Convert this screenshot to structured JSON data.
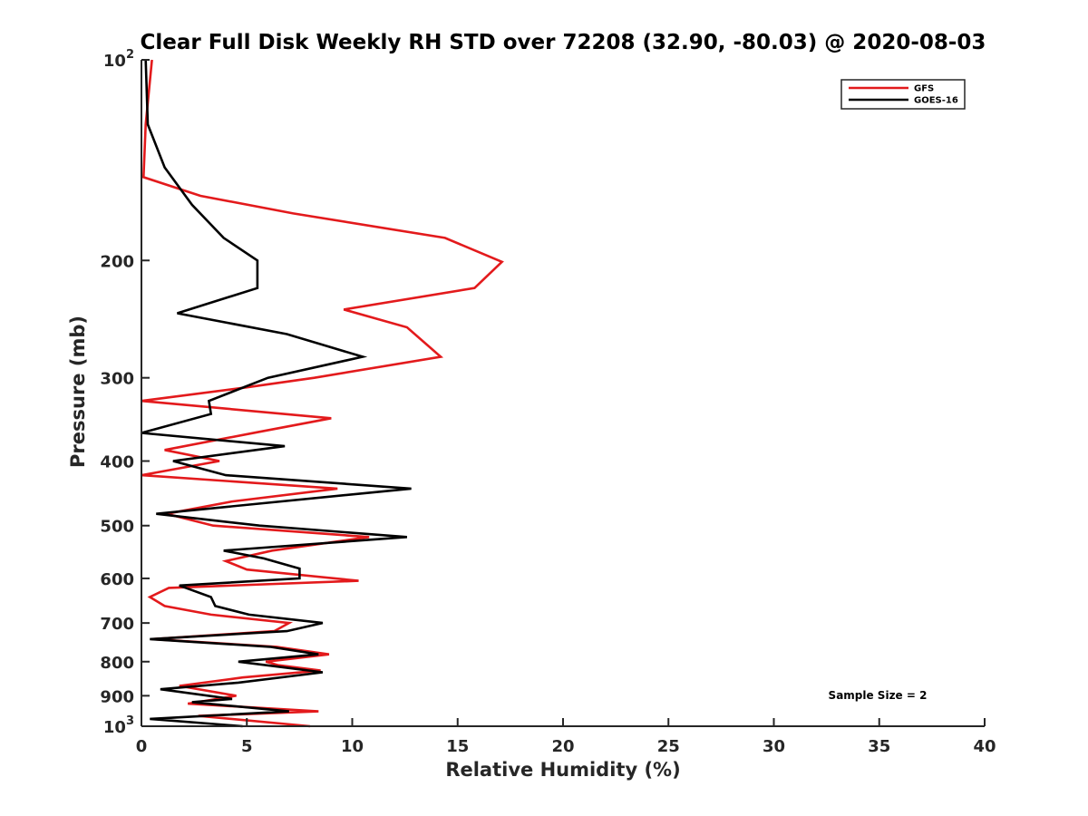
{
  "chart_data": {
    "type": "line",
    "title": "Clear Full Disk Weekly RH STD over 72208 (32.90, -80.03) @ 2020-08-03",
    "xlabel": "Relative Humidity (%)",
    "ylabel": "Pressure (mb)",
    "xlim": [
      0,
      40
    ],
    "ylim": [
      100,
      1000
    ],
    "yscale": "log",
    "y_reversed": true,
    "grid": false,
    "legend_position": "top-right",
    "x_ticks": [
      0,
      5,
      10,
      15,
      20,
      25,
      30,
      35,
      40
    ],
    "x_tick_labels": [
      "0",
      "5",
      "10",
      "15",
      "20",
      "25",
      "30",
      "35",
      "40"
    ],
    "y_ticks": [
      100,
      200,
      300,
      400,
      500,
      600,
      700,
      800,
      900,
      1000
    ],
    "y_tick_labels": [
      {
        "base": "10",
        "exp": "2"
      },
      {
        "base": "200",
        "exp": ""
      },
      {
        "base": "300",
        "exp": ""
      },
      {
        "base": "400",
        "exp": ""
      },
      {
        "base": "500",
        "exp": ""
      },
      {
        "base": "600",
        "exp": ""
      },
      {
        "base": "700",
        "exp": ""
      },
      {
        "base": "800",
        "exp": ""
      },
      {
        "base": "900",
        "exp": ""
      },
      {
        "base": "10",
        "exp": "3"
      }
    ],
    "annotation": "Sample Size = 2",
    "series": [
      {
        "name": "GFS",
        "color": "#e31a1c",
        "points": [
          [
            0.5,
            100
          ],
          [
            0.2,
            125
          ],
          [
            0.1,
            150
          ],
          [
            2.8,
            160
          ],
          [
            7.2,
            170
          ],
          [
            14.4,
            185
          ],
          [
            17.1,
            201
          ],
          [
            15.8,
            220
          ],
          [
            9.6,
            237
          ],
          [
            12.6,
            252
          ],
          [
            14.2,
            279
          ],
          [
            8.2,
            300
          ],
          [
            5.0,
            310
          ],
          [
            0.0,
            325
          ],
          [
            9.0,
            345
          ],
          [
            5.5,
            362
          ],
          [
            1.1,
            385
          ],
          [
            3.7,
            400
          ],
          [
            0.0,
            420
          ],
          [
            9.3,
            440
          ],
          [
            4.3,
            460
          ],
          [
            1.2,
            480
          ],
          [
            3.4,
            500
          ],
          [
            10.8,
            520
          ],
          [
            6.2,
            545
          ],
          [
            4.0,
            565
          ],
          [
            5.0,
            582
          ],
          [
            10.3,
            605
          ],
          [
            1.3,
            620
          ],
          [
            0.4,
            640
          ],
          [
            1.1,
            660
          ],
          [
            3.3,
            680
          ],
          [
            7.0,
            700
          ],
          [
            6.3,
            720
          ],
          [
            0.5,
            740
          ],
          [
            6.4,
            760
          ],
          [
            8.9,
            780
          ],
          [
            5.9,
            800
          ],
          [
            6.5,
            810
          ],
          [
            8.5,
            825
          ],
          [
            4.8,
            845
          ],
          [
            1.8,
            870
          ],
          [
            4.5,
            900
          ],
          [
            2.2,
            925
          ],
          [
            8.4,
            950
          ],
          [
            2.7,
            965
          ],
          [
            8.0,
            1000
          ]
        ]
      },
      {
        "name": "GOES-16",
        "color": "#000000",
        "points": [
          [
            0.2,
            100
          ],
          [
            0.3,
            125
          ],
          [
            1.1,
            145
          ],
          [
            2.4,
            165
          ],
          [
            3.9,
            185
          ],
          [
            5.5,
            200
          ],
          [
            5.5,
            220
          ],
          [
            1.7,
            240
          ],
          [
            6.9,
            258
          ],
          [
            10.5,
            279
          ],
          [
            6.0,
            300
          ],
          [
            3.2,
            325
          ],
          [
            3.3,
            340
          ],
          [
            0.0,
            363
          ],
          [
            6.8,
            380
          ],
          [
            1.5,
            400
          ],
          [
            4.0,
            420
          ],
          [
            12.8,
            440
          ],
          [
            0.7,
            480
          ],
          [
            5.6,
            500
          ],
          [
            12.6,
            520
          ],
          [
            3.9,
            545
          ],
          [
            5.8,
            560
          ],
          [
            7.5,
            580
          ],
          [
            7.5,
            600
          ],
          [
            1.8,
            615
          ],
          [
            3.3,
            640
          ],
          [
            3.5,
            660
          ],
          [
            5.1,
            680
          ],
          [
            8.6,
            700
          ],
          [
            6.9,
            720
          ],
          [
            0.4,
            740
          ],
          [
            6.1,
            760
          ],
          [
            8.4,
            780
          ],
          [
            4.6,
            800
          ],
          [
            8.6,
            830
          ],
          [
            4.6,
            860
          ],
          [
            0.9,
            880
          ],
          [
            4.3,
            910
          ],
          [
            2.4,
            920
          ],
          [
            7.0,
            950
          ],
          [
            0.4,
            975
          ],
          [
            4.8,
            1000
          ]
        ]
      }
    ]
  }
}
